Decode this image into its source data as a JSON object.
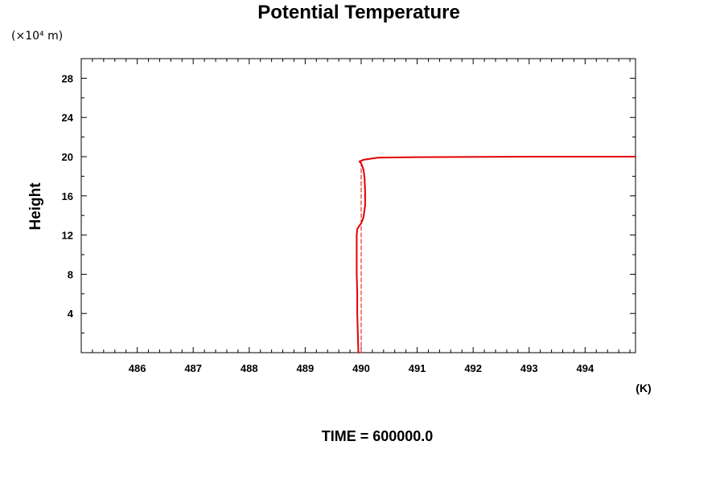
{
  "chart_data": {
    "type": "line",
    "title": "Potential Temperature",
    "ylabel": "Height",
    "y_scale_note": "(×10⁴ m)",
    "x_unit": "(K)",
    "footer": "TIME = 600000.0",
    "xlim": [
      485.0,
      494.9
    ],
    "ylim": [
      0,
      30
    ],
    "x_ticks": [
      486,
      487,
      488,
      489,
      490,
      491,
      492,
      493,
      494
    ],
    "y_ticks": [
      4,
      8,
      12,
      16,
      20,
      24,
      28
    ],
    "grid": false,
    "series": [
      {
        "style": "solid",
        "color": "#e00000",
        "x": [
          489.95,
          489.94,
          489.93,
          489.93,
          489.92,
          489.92,
          489.92,
          489.93,
          489.96,
          490.0,
          490.04,
          490.07,
          490.07,
          490.06,
          490.04,
          490.0,
          489.97,
          490.05,
          490.3,
          491.0,
          493.0,
          494.9
        ],
        "y": [
          0,
          2,
          4,
          6,
          8,
          10,
          12,
          12.6,
          12.9,
          13.2,
          13.8,
          15.0,
          16.4,
          17.8,
          18.7,
          19.3,
          19.5,
          19.7,
          19.9,
          19.95,
          20.0,
          20.0
        ]
      },
      {
        "style": "dashed",
        "color": "#e00000",
        "x": [
          490.0,
          490.0
        ],
        "y": [
          0,
          19.5
        ]
      }
    ]
  }
}
